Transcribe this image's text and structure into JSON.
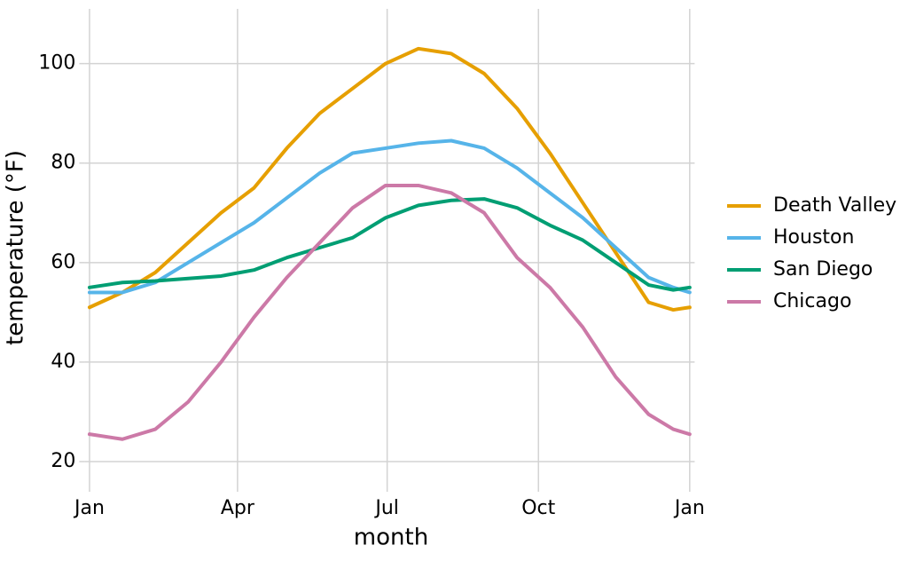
{
  "chart_data": {
    "type": "line",
    "x_label": "month",
    "y_label": "temperature (°F)",
    "x": [
      0,
      20,
      40,
      60,
      80,
      100,
      120,
      140,
      160,
      180,
      200,
      220,
      240,
      260,
      280,
      300,
      320,
      340,
      355,
      365
    ],
    "xlim": [
      -3,
      368
    ],
    "xticks": [
      {
        "value": 0,
        "label": "Jan"
      },
      {
        "value": 90,
        "label": "Apr"
      },
      {
        "value": 181,
        "label": "Jul"
      },
      {
        "value": 273,
        "label": "Oct"
      },
      {
        "value": 365,
        "label": "Jan"
      }
    ],
    "ylim": [
      15,
      111
    ],
    "yticks": [
      20,
      40,
      60,
      80,
      100
    ],
    "grid": true,
    "legend_position": "right",
    "series": [
      {
        "name": "Death Valley",
        "color": "#E69F00",
        "values": [
          51,
          54,
          58,
          64,
          70,
          75,
          83,
          90,
          95,
          100,
          103,
          102,
          98,
          91,
          82,
          72,
          62,
          52,
          50.5,
          51
        ]
      },
      {
        "name": "Houston",
        "color": "#56B4E9",
        "values": [
          54,
          54,
          56,
          60,
          64,
          68,
          73,
          78,
          82,
          83,
          84,
          84.5,
          83,
          79,
          74,
          69,
          63,
          57,
          55,
          54
        ]
      },
      {
        "name": "San Diego",
        "color": "#009E73",
        "values": [
          55,
          56,
          56.3,
          56.8,
          57.3,
          58.5,
          61,
          63,
          65,
          69,
          71.5,
          72.5,
          72.8,
          71,
          67.5,
          64.5,
          60,
          55.5,
          54.5,
          55
        ]
      },
      {
        "name": "Chicago",
        "color": "#CC79A7",
        "values": [
          25.5,
          24.5,
          26.5,
          32,
          40,
          49,
          57,
          64,
          71,
          75.5,
          75.5,
          74,
          70,
          61,
          55,
          47,
          37,
          29.5,
          26.5,
          25.5
        ]
      }
    ]
  }
}
